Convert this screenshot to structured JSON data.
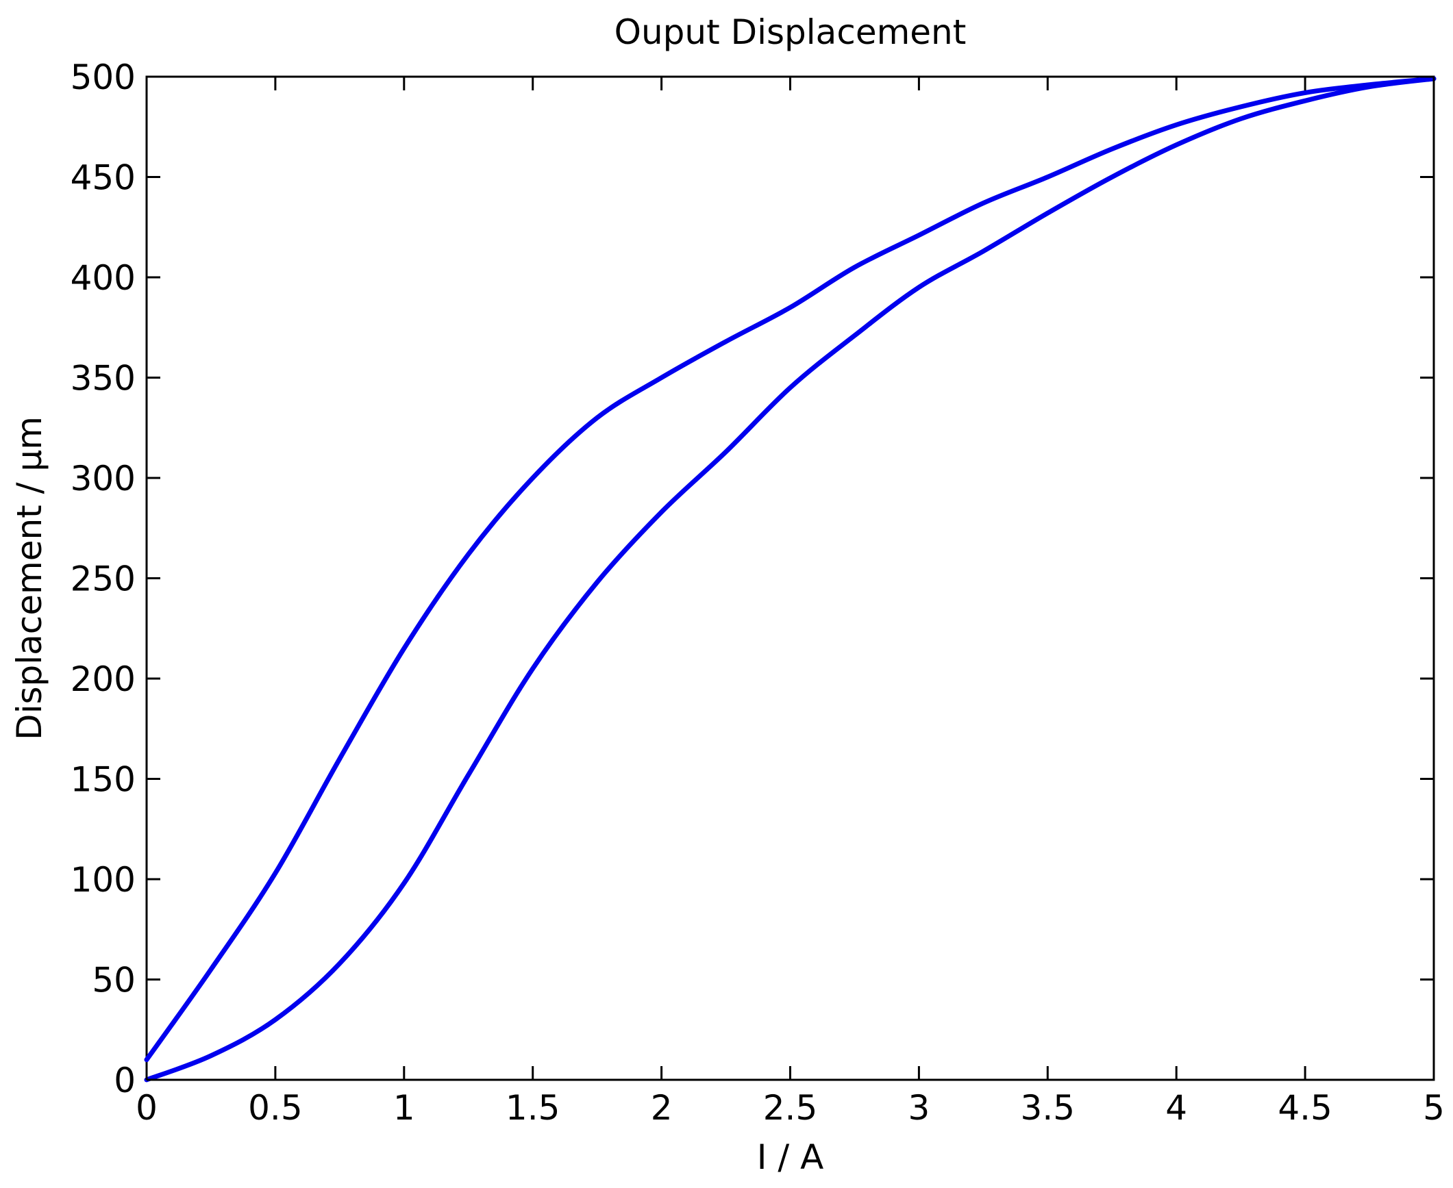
{
  "chart_data": {
    "type": "line",
    "title": "Ouput Displacement",
    "xlabel": "I / A",
    "ylabel": "Displacement / μm",
    "xlim": [
      0,
      5
    ],
    "ylim": [
      0,
      500
    ],
    "x_ticks": [
      "0",
      "0.5",
      "1",
      "1.5",
      "2",
      "2.5",
      "3",
      "3.5",
      "4",
      "4.5",
      "5"
    ],
    "y_ticks": [
      "0",
      "50",
      "100",
      "150",
      "200",
      "250",
      "300",
      "350",
      "400",
      "450",
      "500"
    ],
    "grid": false,
    "legend": "none",
    "line_color": "#0000ee",
    "series": [
      {
        "x": [
          0,
          0.25,
          0.5,
          0.75,
          1.0,
          1.25,
          1.5,
          1.75,
          2.0,
          2.25,
          2.5,
          2.75,
          3.0,
          3.25,
          3.5,
          3.75,
          4.0,
          4.25,
          4.5,
          4.75,
          5.0
        ],
        "y": [
          10,
          55,
          103,
          160,
          215,
          262,
          300,
          330,
          350,
          368,
          385,
          405,
          421,
          437,
          450,
          464,
          476,
          485,
          492,
          496,
          499
        ]
      },
      {
        "x": [
          0,
          0.25,
          0.5,
          0.75,
          1.0,
          1.25,
          1.5,
          1.75,
          2.0,
          2.25,
          2.5,
          2.75,
          3.0,
          3.25,
          3.5,
          3.75,
          4.0,
          4.25,
          4.5,
          4.75,
          5.0
        ],
        "y": [
          0,
          12,
          30,
          58,
          98,
          152,
          205,
          248,
          283,
          313,
          345,
          371,
          395,
          413,
          432,
          450,
          466,
          479,
          488,
          495,
          499
        ]
      }
    ]
  }
}
